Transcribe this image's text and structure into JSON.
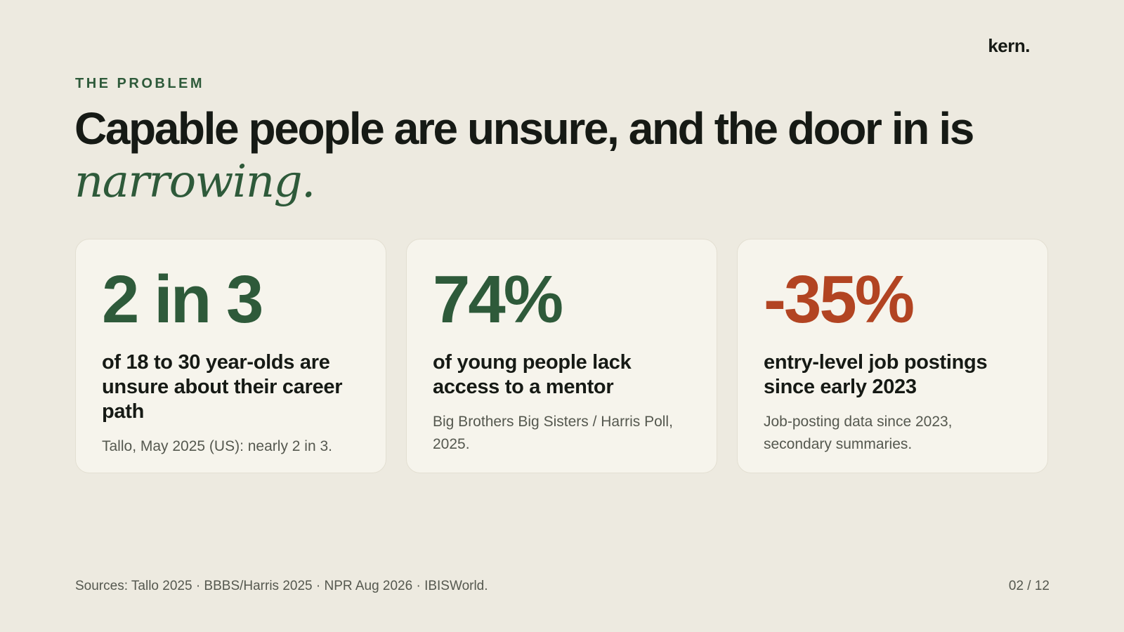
{
  "brand": {
    "logo_text": "kern."
  },
  "header": {
    "eyebrow": "THE PROBLEM",
    "headline_main": "Capable people are unsure, and the door in is ",
    "headline_accent": "narrowing."
  },
  "cards": [
    {
      "stat": "2 in 3",
      "description": "of 18 to 30 year-olds are unsure about their career path",
      "source": "Tallo, May 2025 (US): nearly 2 in 3.",
      "stat_color": "#2e5a3a"
    },
    {
      "stat": "74%",
      "description": "of young people lack access to a mentor",
      "source": "Big Brothers Big Sisters / Harris Poll, 2025.",
      "stat_color": "#2e5a3a"
    },
    {
      "stat": "-35%",
      "description": "entry-level job postings since early 2023",
      "source": "Job-posting data since 2023, secondary summaries.",
      "stat_color": "#b24422"
    }
  ],
  "footer": {
    "sources": "Sources: Tallo 2025 · BBBS/Harris 2025 · NPR Aug 2026 · IBISWorld.",
    "page_indicator": "02 / 12"
  },
  "colors": {
    "background": "#edeae0",
    "card_background": "#f6f4ec",
    "accent_green": "#2e5a3a",
    "accent_red": "#b24422",
    "text_dark": "#161a15",
    "text_muted": "#55584f"
  }
}
